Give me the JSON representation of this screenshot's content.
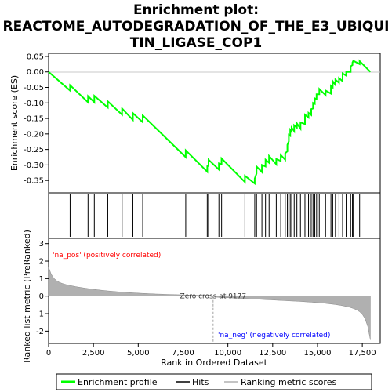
{
  "chart_data": {
    "type": "line",
    "title_lines": [
      "Enrichment plot:",
      "REACTOME_AUTODEGRADATION_OF_THE_E3_UBIQUI",
      "TIN_LIGASE_COP1"
    ],
    "xlabel": "Rank in Ordered Dataset",
    "ylabel_top": "Enrichment score (ES)",
    "ylabel_bottom": "Ranked list metric (PreRanked)",
    "xlim": [
      0,
      18500
    ],
    "x_ticks": [
      0,
      2500,
      5000,
      7500,
      10000,
      12500,
      15000,
      17500
    ],
    "x_tick_labels": [
      "0",
      "2,500",
      "5,000",
      "7,500",
      "10,000",
      "12,500",
      "15,000",
      "17,500"
    ],
    "es_ylim": [
      -0.39,
      0.06
    ],
    "es_ticks": [
      0.05,
      0.0,
      -0.05,
      -0.1,
      -0.15,
      -0.2,
      -0.25,
      -0.3,
      -0.35
    ],
    "es_tick_labels": [
      "0.05",
      "0.00",
      "-0.05",
      "-0.10",
      "-0.15",
      "-0.20",
      "-0.25",
      "-0.30",
      "-0.35"
    ],
    "metric_ylim": [
      -2.7,
      3.3
    ],
    "metric_ticks": [
      3,
      2,
      1,
      0,
      -1,
      -2
    ],
    "metric_tick_labels": [
      "3",
      "2",
      "1",
      "0",
      "-1",
      "-2"
    ],
    "total_rank": 17950,
    "zero_cross_rank": 9177,
    "zero_cross_label": "Zero cross at 9177",
    "pos_label": "'na_pos' (positively correlated)",
    "neg_label": "'na_neg' (negatively correlated)",
    "hits": [
      1200,
      2200,
      2550,
      3300,
      4100,
      4700,
      5250,
      7650,
      8850,
      8920,
      9500,
      9650,
      10950,
      11500,
      11600,
      11900,
      12100,
      12300,
      12700,
      12950,
      13200,
      13320,
      13400,
      13480,
      13560,
      13700,
      13850,
      14050,
      14300,
      14500,
      14650,
      14750,
      14850,
      14950,
      15100,
      15450,
      15750,
      15850,
      16000,
      16200,
      16400,
      16600,
      16850,
      16950,
      17000,
      17350
    ],
    "es_points": [
      [
        0,
        0.0
      ],
      [
        1200,
        -0.06
      ],
      [
        1200,
        -0.043
      ],
      [
        2200,
        -0.098
      ],
      [
        2200,
        -0.078
      ],
      [
        2550,
        -0.098
      ],
      [
        2550,
        -0.077
      ],
      [
        3300,
        -0.115
      ],
      [
        3300,
        -0.095
      ],
      [
        4100,
        -0.138
      ],
      [
        4100,
        -0.118
      ],
      [
        4700,
        -0.155
      ],
      [
        4700,
        -0.133
      ],
      [
        5250,
        -0.162
      ],
      [
        5250,
        -0.14
      ],
      [
        7650,
        -0.275
      ],
      [
        7650,
        -0.253
      ],
      [
        8850,
        -0.322
      ],
      [
        8850,
        -0.304
      ],
      [
        8920,
        -0.303
      ],
      [
        8920,
        -0.283
      ],
      [
        9500,
        -0.315
      ],
      [
        9500,
        -0.295
      ],
      [
        9650,
        -0.298
      ],
      [
        9650,
        -0.279
      ],
      [
        10950,
        -0.355
      ],
      [
        10950,
        -0.335
      ],
      [
        11500,
        -0.36
      ],
      [
        11500,
        -0.344
      ],
      [
        11600,
        -0.328
      ],
      [
        11600,
        -0.305
      ],
      [
        11900,
        -0.323
      ],
      [
        11900,
        -0.3
      ],
      [
        12100,
        -0.305
      ],
      [
        12100,
        -0.283
      ],
      [
        12300,
        -0.293
      ],
      [
        12300,
        -0.271
      ],
      [
        12700,
        -0.298
      ],
      [
        12700,
        -0.281
      ],
      [
        12950,
        -0.287
      ],
      [
        12950,
        -0.268
      ],
      [
        13200,
        -0.283
      ],
      [
        13200,
        -0.262
      ],
      [
        13320,
        -0.256
      ],
      [
        13320,
        -0.235
      ],
      [
        13400,
        -0.224
      ],
      [
        13400,
        -0.203
      ],
      [
        13480,
        -0.206
      ],
      [
        13480,
        -0.187
      ],
      [
        13560,
        -0.193
      ],
      [
        13560,
        -0.18
      ],
      [
        13700,
        -0.191
      ],
      [
        13700,
        -0.172
      ],
      [
        13850,
        -0.18
      ],
      [
        13850,
        -0.166
      ],
      [
        14050,
        -0.183
      ],
      [
        14050,
        -0.163
      ],
      [
        14300,
        -0.168
      ],
      [
        14300,
        -0.138
      ],
      [
        14500,
        -0.147
      ],
      [
        14500,
        -0.132
      ],
      [
        14650,
        -0.139
      ],
      [
        14650,
        -0.12
      ],
      [
        14750,
        -0.118
      ],
      [
        14750,
        -0.1
      ],
      [
        14850,
        -0.103
      ],
      [
        14850,
        -0.085
      ],
      [
        14950,
        -0.088
      ],
      [
        14950,
        -0.072
      ],
      [
        15100,
        -0.072
      ],
      [
        15100,
        -0.055
      ],
      [
        15450,
        -0.075
      ],
      [
        15450,
        -0.06
      ],
      [
        15750,
        -0.07
      ],
      [
        15750,
        -0.045
      ],
      [
        15850,
        -0.05
      ],
      [
        15850,
        -0.03
      ],
      [
        16000,
        -0.042
      ],
      [
        16000,
        -0.025
      ],
      [
        16200,
        -0.035
      ],
      [
        16200,
        -0.02
      ],
      [
        16400,
        -0.03
      ],
      [
        16400,
        -0.005
      ],
      [
        16600,
        -0.012
      ],
      [
        16600,
        0.0
      ],
      [
        16850,
        0.0
      ],
      [
        16850,
        0.018
      ],
      [
        16950,
        0.022
      ],
      [
        16950,
        0.03
      ],
      [
        17000,
        0.036
      ],
      [
        17350,
        0.025
      ],
      [
        17350,
        0.035
      ],
      [
        17950,
        0.0
      ]
    ],
    "colors": {
      "enrichment_line": "#00ff00",
      "hits": "#000000",
      "metric_fill": "#b0b0b0",
      "zero_cross": "#a0a0a0",
      "pos_text": "#ff0000",
      "neg_text": "#0000ff"
    },
    "legend": {
      "items": [
        "Enrichment profile",
        "Hits",
        "Ranking metric scores"
      ]
    }
  }
}
